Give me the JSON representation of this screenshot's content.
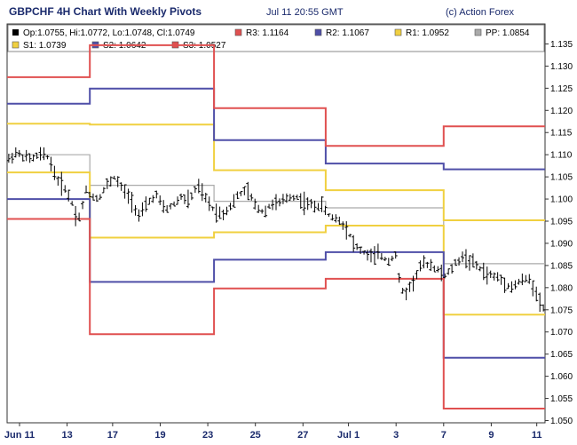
{
  "header": {
    "title": "GBPCHF 4H Chart With Weekly Pivots",
    "timestamp": "Jul 11 20:55 GMT",
    "credit": "(c) Action Forex"
  },
  "chart_data": {
    "type": "line",
    "ohlc_legend": "Op:1.0755, Hi:1.0772, Lo:1.0748, Cl:1.0749",
    "ylim": [
      1.0495,
      1.1395
    ],
    "x_range": [
      0,
      130
    ],
    "grid": false,
    "y_ticks": [
      "1.135",
      "1.130",
      "1.125",
      "1.120",
      "1.115",
      "1.110",
      "1.105",
      "1.100",
      "1.095",
      "1.090",
      "1.085",
      "1.080",
      "1.075",
      "1.070",
      "1.065",
      "1.060",
      "1.055",
      "1.050"
    ],
    "x_ticks": [
      {
        "label": "Jun 11",
        "x": 3
      },
      {
        "label": "13",
        "x": 14.5
      },
      {
        "label": "17",
        "x": 25.5
      },
      {
        "label": "19",
        "x": 37
      },
      {
        "label": "23",
        "x": 48.5
      },
      {
        "label": "25",
        "x": 60
      },
      {
        "label": "27",
        "x": 71.5
      },
      {
        "label": "Jul 1",
        "x": 82.5
      },
      {
        "label": "3",
        "x": 94
      },
      {
        "label": "7",
        "x": 105.5
      },
      {
        "label": "9",
        "x": 117
      },
      {
        "label": "11",
        "x": 128
      }
    ],
    "legend": [
      {
        "label": "R3: 1.1164",
        "color": "#e05050"
      },
      {
        "label": "R2: 1.1067",
        "color": "#4f4fa8"
      },
      {
        "label": "R1: 1.0952",
        "color": "#f0d040"
      },
      {
        "label": "PP: 1.0854",
        "color": "#aaaaaa"
      },
      {
        "label": "S1: 1.0739",
        "color": "#f0d040"
      },
      {
        "label": "S2: 1.0642",
        "color": "#4f4fa8"
      },
      {
        "label": "S3: 1.0527",
        "color": "#e05050"
      }
    ],
    "pivot_weeks": [
      {
        "x": [
          0,
          20
        ],
        "R3": 1.1275,
        "R2": 1.1215,
        "R1": 1.117,
        "PP": 1.11,
        "S1": 1.106,
        "S2": 1.1,
        "S3": 1.0955
      },
      {
        "x": [
          20,
          50
        ],
        "R3": 1.1347,
        "R2": 1.1249,
        "R1": 1.1168,
        "PP": 1.1031,
        "S1": 1.0913,
        "S2": 1.0813,
        "S3": 1.0695
      },
      {
        "x": [
          50,
          77
        ],
        "R3": 1.1205,
        "R2": 1.1133,
        "R1": 1.1065,
        "PP": 1.0995,
        "S1": 1.0925,
        "S2": 1.0863,
        "S3": 1.0798
      },
      {
        "x": [
          77,
          105.5
        ],
        "R3": 1.112,
        "R2": 1.108,
        "R1": 1.102,
        "PP": 1.098,
        "S1": 1.094,
        "S2": 1.088,
        "S3": 1.082
      },
      {
        "x": [
          105.5,
          130
        ],
        "R3": 1.1164,
        "R2": 1.1067,
        "R1": 1.0952,
        "PP": 1.0854,
        "S1": 1.0739,
        "S2": 1.0642,
        "S3": 1.0527
      }
    ],
    "price_path": [
      [
        0,
        1.1085
      ],
      [
        2,
        1.1105
      ],
      [
        4,
        1.1095
      ],
      [
        6,
        1.109
      ],
      [
        8,
        1.11
      ],
      [
        10,
        1.1095
      ],
      [
        12,
        1.1045
      ],
      [
        14,
        1.1025
      ],
      [
        16,
        1.0985
      ],
      [
        17,
        1.095
      ],
      [
        18,
        1.0975
      ],
      [
        19,
        1.102
      ],
      [
        20,
        1.101
      ],
      [
        22,
        1.1
      ],
      [
        24,
        1.103
      ],
      [
        26,
        1.105
      ],
      [
        28,
        1.102
      ],
      [
        30,
        1.1
      ],
      [
        32,
        1.096
      ],
      [
        34,
        1.099
      ],
      [
        36,
        1.101
      ],
      [
        38,
        1.0975
      ],
      [
        40,
        1.0985
      ],
      [
        42,
        1.1005
      ],
      [
        44,
        1.0995
      ],
      [
        46,
        1.103
      ],
      [
        48,
        1.1
      ],
      [
        50,
        1.0975
      ],
      [
        52,
        1.0965
      ],
      [
        54,
        1.0985
      ],
      [
        56,
        1.101
      ],
      [
        58,
        1.102
      ],
      [
        60,
        1.0985
      ],
      [
        62,
        1.097
      ],
      [
        64,
        1.099
      ],
      [
        66,
        1.099
      ],
      [
        68,
        1.1005
      ],
      [
        70,
        1.1005
      ],
      [
        72,
        1.099
      ],
      [
        74,
        1.0985
      ],
      [
        76,
        1.0985
      ],
      [
        78,
        1.096
      ],
      [
        80,
        1.0955
      ],
      [
        82,
        1.0935
      ],
      [
        84,
        1.0895
      ],
      [
        86,
        1.088
      ],
      [
        88,
        1.087
      ],
      [
        90,
        1.0875
      ],
      [
        92,
        1.086
      ],
      [
        94,
        1.0875
      ],
      [
        95,
        1.08
      ],
      [
        96,
        1.0785
      ],
      [
        98,
        1.081
      ],
      [
        100,
        1.085
      ],
      [
        102,
        1.0855
      ],
      [
        104,
        1.084
      ],
      [
        106,
        1.0825
      ],
      [
        108,
        1.085
      ],
      [
        110,
        1.087
      ],
      [
        112,
        1.086
      ],
      [
        114,
        1.0845
      ],
      [
        116,
        1.083
      ],
      [
        118,
        1.0825
      ],
      [
        120,
        1.0815
      ],
      [
        122,
        1.08
      ],
      [
        124,
        1.0815
      ],
      [
        126,
        1.082
      ],
      [
        128,
        1.079
      ],
      [
        129,
        1.076
      ],
      [
        130,
        1.0749
      ]
    ]
  }
}
